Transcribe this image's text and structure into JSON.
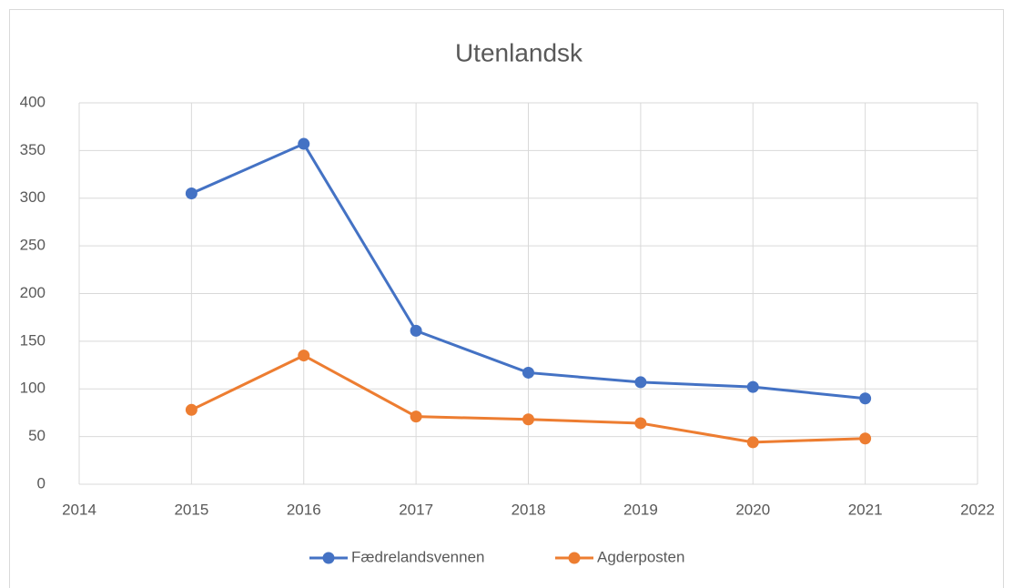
{
  "chart_data": {
    "type": "line",
    "title": "Utenlandsk",
    "x": [
      2015,
      2016,
      2017,
      2018,
      2019,
      2020,
      2021
    ],
    "series": [
      {
        "name": "Fædrelandsvennen",
        "color": "#4472c4",
        "values": [
          305,
          357,
          161,
          117,
          107,
          102,
          90
        ]
      },
      {
        "name": "Agderposten",
        "color": "#ed7d31",
        "values": [
          78,
          135,
          71,
          68,
          64,
          44,
          48
        ]
      }
    ],
    "xlim": [
      2014,
      2022
    ],
    "xticks": [
      2014,
      2015,
      2016,
      2017,
      2018,
      2019,
      2020,
      2021,
      2022
    ],
    "ylim": [
      0,
      400
    ],
    "yticks": [
      0,
      50,
      100,
      150,
      200,
      250,
      300,
      350,
      400
    ],
    "grid": true,
    "legend": "bottom"
  }
}
